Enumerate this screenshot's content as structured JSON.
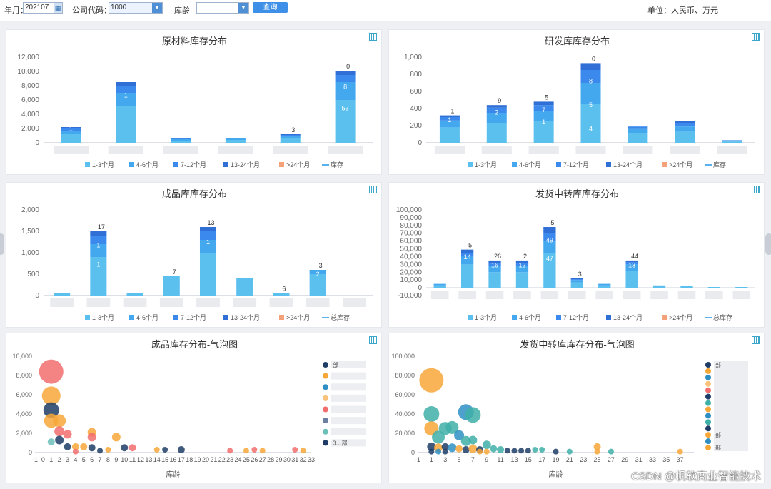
{
  "toolbar": {
    "month_label": "年月：",
    "month_value": "202107",
    "company_label": "公司代码：",
    "company_value": "1000",
    "age_label": "库龄:",
    "age_value": "",
    "query_label": "查询",
    "unit_text": "单位：人民币、万元"
  },
  "colors": {
    "b1_3": "#5bc0ee",
    "b4_6": "#44a8ef",
    "b7_12": "#3b89ec",
    "b13_24": "#2f6fd6",
    "b24": "#f5a27a",
    "line": "#5ab1ef"
  },
  "legend_bar": [
    "1-3个月",
    "4-6个月",
    "7-12个月",
    "13-24个月",
    ">24个月",
    "库存"
  ],
  "legend_bar_total": [
    "1-3个月",
    "4-6个月",
    "7-12个月",
    "13-24个月",
    ">24个月",
    "总库存"
  ],
  "chart_data": [
    {
      "type": "bar",
      "title": "原材料库存分布",
      "y_ticks": [
        "0",
        "2,000",
        "4,000",
        "6,000",
        "8,000",
        "10,000",
        "12,000"
      ],
      "ylim": [
        0,
        12000
      ],
      "categories": [
        "",
        "",
        "",
        "",
        "",
        ""
      ],
      "series": [
        {
          "name": "1-3个月",
          "values": [
            1200,
            5200,
            300,
            400,
            600,
            6000
          ]
        },
        {
          "name": "4-6个月",
          "values": [
            500,
            1800,
            200,
            200,
            300,
            2500
          ]
        },
        {
          "name": "7-12个月",
          "values": [
            300,
            900,
            100,
            0,
            200,
            1000
          ]
        },
        {
          "name": "13-24个月",
          "values": [
            200,
            600,
            0,
            0,
            100,
            600
          ]
        },
        {
          "name": ">24个月",
          "values": [
            0,
            0,
            0,
            0,
            0,
            0
          ]
        }
      ],
      "data_labels": [
        "",
        "",
        "",
        "",
        "3",
        "0"
      ],
      "segment_labels": [
        [
          "1"
        ],
        [
          "1"
        ],
        [],
        [],
        [],
        [
          "8",
          "53"
        ]
      ]
    },
    {
      "type": "bar",
      "title": "研发库库存分布",
      "y_ticks": [
        "0",
        "200",
        "400",
        "600",
        "800",
        "1,000"
      ],
      "ylim": [
        0,
        1000
      ],
      "categories": [
        "",
        "",
        "",
        "",
        "",
        "",
        ""
      ],
      "series": [
        {
          "name": "1-3个月",
          "values": [
            180,
            230,
            250,
            450,
            110,
            130,
            15
          ]
        },
        {
          "name": "4-6个月",
          "values": [
            80,
            120,
            120,
            250,
            50,
            60,
            10
          ]
        },
        {
          "name": "7-12个月",
          "values": [
            40,
            60,
            70,
            150,
            30,
            40,
            5
          ]
        },
        {
          "name": "13-24个月",
          "values": [
            20,
            30,
            40,
            80,
            0,
            20,
            0
          ]
        },
        {
          "name": ">24个月",
          "values": [
            0,
            0,
            0,
            0,
            0,
            0,
            0
          ]
        }
      ],
      "data_labels": [
        "1",
        "9",
        "5",
        "0",
        "",
        "",
        ""
      ],
      "segment_labels": [
        [
          "1"
        ],
        [
          "2"
        ],
        [
          "7",
          "1"
        ],
        [
          "8",
          "5",
          "4"
        ],
        [],
        [],
        []
      ]
    },
    {
      "type": "bar",
      "title": "成品库库存分布",
      "y_ticks": [
        "0",
        "500",
        "1,000",
        "1,500",
        "2,000"
      ],
      "ylim": [
        0,
        2000
      ],
      "categories": [
        "",
        "",
        "",
        "",
        "",
        "",
        "",
        "",
        ""
      ],
      "series": [
        {
          "name": "1-3个月",
          "values": [
            60,
            900,
            50,
            450,
            1000,
            400,
            60,
            500,
            0
          ]
        },
        {
          "name": "4-6个月",
          "values": [
            0,
            300,
            0,
            0,
            300,
            0,
            0,
            100,
            0
          ]
        },
        {
          "name": "7-12个月",
          "values": [
            0,
            200,
            0,
            0,
            200,
            0,
            0,
            0,
            0
          ]
        },
        {
          "name": "13-24个月",
          "values": [
            0,
            100,
            0,
            0,
            100,
            0,
            0,
            0,
            0
          ]
        },
        {
          "name": ">24个月",
          "values": [
            0,
            0,
            0,
            0,
            0,
            0,
            0,
            0,
            0
          ]
        }
      ],
      "data_labels": [
        "",
        "17",
        "",
        "7",
        "13",
        "",
        "6",
        "3",
        ""
      ],
      "segment_labels": [
        [],
        [
          "1",
          "1"
        ],
        [],
        [],
        [
          "1"
        ],
        [],
        [],
        [
          "2"
        ],
        []
      ]
    },
    {
      "type": "bar",
      "title": "发货中转库库存分布",
      "y_ticks": [
        "-10,000",
        "0",
        "10,000",
        "20,000",
        "30,000",
        "40,000",
        "50,000",
        "60,000",
        "70,000",
        "80,000",
        "90,000",
        "100,000"
      ],
      "ylim": [
        -10000,
        100000
      ],
      "categories": [
        "",
        "",
        "",
        "",
        "",
        "",
        "",
        "",
        "",
        "",
        "",
        ""
      ],
      "series": [
        {
          "name": "1-3个月",
          "values": [
            3000,
            30000,
            20000,
            20000,
            45000,
            7000,
            3000,
            22000,
            2000,
            2000,
            1000,
            1000
          ]
        },
        {
          "name": "4-6个月",
          "values": [
            2000,
            10000,
            8000,
            8000,
            15000,
            3000,
            2000,
            8000,
            1000,
            0,
            0,
            0
          ]
        },
        {
          "name": "7-12个月",
          "values": [
            0,
            5000,
            4000,
            4000,
            10000,
            1000,
            0,
            3000,
            0,
            0,
            0,
            0
          ]
        },
        {
          "name": "13-24个月",
          "values": [
            0,
            4000,
            3000,
            3000,
            8000,
            1000,
            0,
            2000,
            0,
            0,
            0,
            0
          ]
        },
        {
          "name": ">24个月",
          "values": [
            0,
            0,
            0,
            0,
            0,
            0,
            0,
            0,
            0,
            0,
            0,
            0
          ]
        }
      ],
      "data_labels": [
        "",
        "5",
        "26",
        "2",
        "5",
        "3",
        "",
        "44",
        "",
        "",
        "",
        ""
      ],
      "segment_labels": [
        [],
        [
          "14"
        ],
        [
          "16"
        ],
        [
          "12"
        ],
        [
          "49",
          "47"
        ],
        [],
        [],
        [
          "13"
        ],
        [],
        [],
        [],
        []
      ]
    },
    {
      "type": "scatter",
      "title": "成品库存分布-气泡图",
      "xlabel": "库龄",
      "x_ticks": [
        -1,
        0,
        1,
        2,
        3,
        4,
        5,
        6,
        7,
        8,
        9,
        10,
        11,
        12,
        13,
        14,
        15,
        16,
        17,
        18,
        19,
        20,
        21,
        22,
        23,
        24,
        25,
        26,
        27,
        28,
        29,
        30,
        31,
        32,
        33
      ],
      "xlim": [
        -1,
        33
      ],
      "y_ticks": [
        "0",
        "2,000",
        "4,000",
        "6,000",
        "8,000",
        "10,000"
      ],
      "ylim": [
        0,
        10000
      ],
      "legend": [
        "部",
        "",
        "",
        "",
        "",
        "",
        "",
        "3…部"
      ],
      "points": [
        {
          "x": 1,
          "y": 8400,
          "r": 17,
          "c": "#f26d6d"
        },
        {
          "x": 1,
          "y": 5900,
          "r": 13,
          "c": "#f7a738"
        },
        {
          "x": 1,
          "y": 4400,
          "r": 11,
          "c": "#1f3d66"
        },
        {
          "x": 1,
          "y": 3300,
          "r": 10,
          "c": "#f7a738"
        },
        {
          "x": 2,
          "y": 3300,
          "r": 9,
          "c": "#f7a738"
        },
        {
          "x": 2,
          "y": 2200,
          "r": 7,
          "c": "#f26d6d"
        },
        {
          "x": 3,
          "y": 1900,
          "r": 6,
          "c": "#f26d6d"
        },
        {
          "x": 2,
          "y": 1300,
          "r": 6,
          "c": "#1f3d66"
        },
        {
          "x": 1,
          "y": 1100,
          "r": 5,
          "c": "#6cc0b8"
        },
        {
          "x": 3,
          "y": 600,
          "r": 5,
          "c": "#1f3d66"
        },
        {
          "x": 4,
          "y": 600,
          "r": 5,
          "c": "#f7a738"
        },
        {
          "x": 5,
          "y": 600,
          "r": 5,
          "c": "#f7a738"
        },
        {
          "x": 6,
          "y": 2100,
          "r": 6,
          "c": "#f7a738"
        },
        {
          "x": 6,
          "y": 1600,
          "r": 6,
          "c": "#f26d6d"
        },
        {
          "x": 6,
          "y": 500,
          "r": 5,
          "c": "#1f3d66"
        },
        {
          "x": 9,
          "y": 1600,
          "r": 6,
          "c": "#f7a738"
        },
        {
          "x": 7,
          "y": 200,
          "r": 4,
          "c": "#1f3d66"
        },
        {
          "x": 8,
          "y": 300,
          "r": 4,
          "c": "#f7a738"
        },
        {
          "x": 10,
          "y": 500,
          "r": 5,
          "c": "#1f3d66"
        },
        {
          "x": 11,
          "y": 500,
          "r": 5,
          "c": "#f26d6d"
        },
        {
          "x": 4,
          "y": 100,
          "r": 4,
          "c": "#f26d6d"
        },
        {
          "x": 14,
          "y": 300,
          "r": 4,
          "c": "#f7a738"
        },
        {
          "x": 15,
          "y": 300,
          "r": 4,
          "c": "#1f3d66"
        },
        {
          "x": 17,
          "y": 300,
          "r": 5,
          "c": "#1f3d66"
        },
        {
          "x": 23,
          "y": 200,
          "r": 4,
          "c": "#f26d6d"
        },
        {
          "x": 25,
          "y": 200,
          "r": 4,
          "c": "#f7a738"
        },
        {
          "x": 26,
          "y": 300,
          "r": 4,
          "c": "#f26d6d"
        },
        {
          "x": 27,
          "y": 200,
          "r": 4,
          "c": "#f7a738"
        },
        {
          "x": 31,
          "y": 300,
          "r": 4,
          "c": "#f26d6d"
        },
        {
          "x": 32,
          "y": 200,
          "r": 4,
          "c": "#f7a738"
        }
      ]
    },
    {
      "type": "scatter",
      "title": "发货中转库库存分布-气泡图",
      "xlabel": "库龄",
      "x_ticks": [
        -1,
        1,
        3,
        5,
        7,
        9,
        11,
        13,
        15,
        17,
        19,
        21,
        23,
        25,
        27,
        29,
        31,
        33,
        35,
        37
      ],
      "xlim": [
        -1,
        39
      ],
      "y_ticks": [
        "0",
        "20,000",
        "40,000",
        "60,000",
        "80,000",
        "100,000"
      ],
      "ylim": [
        0,
        100000
      ],
      "legend": [
        "部",
        "",
        "",
        "",
        "",
        "",
        "",
        "",
        "",
        "",
        "",
        "部",
        "",
        "部"
      ],
      "points": [
        {
          "x": 1,
          "y": 75000,
          "r": 17,
          "c": "#f7a738"
        },
        {
          "x": 1,
          "y": 40000,
          "r": 11,
          "c": "#3fb0a8"
        },
        {
          "x": 6,
          "y": 42000,
          "r": 11,
          "c": "#2f8fc4"
        },
        {
          "x": 7,
          "y": 39000,
          "r": 11,
          "c": "#3fb0a8"
        },
        {
          "x": 1,
          "y": 25000,
          "r": 10,
          "c": "#f7a738"
        },
        {
          "x": 3,
          "y": 25000,
          "r": 9,
          "c": "#3fb0a8"
        },
        {
          "x": 4,
          "y": 26000,
          "r": 9,
          "c": "#3fb0a8"
        },
        {
          "x": 2,
          "y": 16000,
          "r": 9,
          "c": "#3fb0a8"
        },
        {
          "x": 5,
          "y": 18000,
          "r": 7,
          "c": "#2f8fc4"
        },
        {
          "x": 6,
          "y": 12000,
          "r": 7,
          "c": "#3fb0a8"
        },
        {
          "x": 7,
          "y": 13000,
          "r": 6,
          "c": "#3fb0a8"
        },
        {
          "x": 1,
          "y": 6000,
          "r": 6,
          "c": "#1f3d66"
        },
        {
          "x": 2,
          "y": 5000,
          "r": 6,
          "c": "#f7a738"
        },
        {
          "x": 3,
          "y": 6000,
          "r": 5,
          "c": "#1f3d66"
        },
        {
          "x": 4,
          "y": 5000,
          "r": 6,
          "c": "#2f8fc4"
        },
        {
          "x": 5,
          "y": 4000,
          "r": 5,
          "c": "#f7a738"
        },
        {
          "x": 6,
          "y": 3000,
          "r": 5,
          "c": "#1f3d66"
        },
        {
          "x": 7,
          "y": 4000,
          "r": 6,
          "c": "#f7a738"
        },
        {
          "x": 8,
          "y": 3000,
          "r": 5,
          "c": "#1f3d66"
        },
        {
          "x": 9,
          "y": 8000,
          "r": 6,
          "c": "#3fb0a8"
        },
        {
          "x": 10,
          "y": 4000,
          "r": 5,
          "c": "#3fb0a8"
        },
        {
          "x": 11,
          "y": 3000,
          "r": 5,
          "c": "#3fb0a8"
        },
        {
          "x": 12,
          "y": 2000,
          "r": 4,
          "c": "#1f3d66"
        },
        {
          "x": 13,
          "y": 2000,
          "r": 4,
          "c": "#1f3d66"
        },
        {
          "x": 14,
          "y": 2000,
          "r": 4,
          "c": "#1f3d66"
        },
        {
          "x": 15,
          "y": 2000,
          "r": 4,
          "c": "#1f3d66"
        },
        {
          "x": 16,
          "y": 3000,
          "r": 4,
          "c": "#3fb0a8"
        },
        {
          "x": 17,
          "y": 3000,
          "r": 4,
          "c": "#3fb0a8"
        },
        {
          "x": 19,
          "y": 1000,
          "r": 4,
          "c": "#1f3d66"
        },
        {
          "x": 21,
          "y": 1000,
          "r": 4,
          "c": "#3fb0a8"
        },
        {
          "x": 25,
          "y": 6000,
          "r": 5,
          "c": "#f7a738"
        },
        {
          "x": 25,
          "y": 1000,
          "r": 4,
          "c": "#f7a738"
        },
        {
          "x": 27,
          "y": 1000,
          "r": 4,
          "c": "#3fb0a8"
        },
        {
          "x": 37,
          "y": 1000,
          "r": 4,
          "c": "#f7a738"
        },
        {
          "x": 1,
          "y": 1000,
          "r": 4,
          "c": "#1f3d66"
        },
        {
          "x": 2,
          "y": 1000,
          "r": 4,
          "c": "#2f8fc4"
        },
        {
          "x": 3,
          "y": 1000,
          "r": 4,
          "c": "#1f3d66"
        },
        {
          "x": 8,
          "y": 1000,
          "r": 4,
          "c": "#f7a738"
        },
        {
          "x": 9,
          "y": 1000,
          "r": 4,
          "c": "#f7a738"
        }
      ]
    }
  ],
  "bubble_legend_colors": [
    [
      "#1f3d66",
      "#f7a738",
      "#2f8fc4",
      "#f7c27a",
      "#f26d6d",
      "#6b7fa3",
      "#6cc0b8",
      "#1f3d66"
    ],
    [
      "#1f3d66",
      "#f7a738",
      "#2f8fc4",
      "#f7c27a",
      "#f26d6d",
      "#1f3d66",
      "#3fb0a8",
      "#f7a738",
      "#2f8fc4",
      "#3fb0a8",
      "#1f3d66",
      "#f7a738",
      "#2f8fc4",
      "#f7a738"
    ]
  ],
  "watermark": "CSDN @帆软商业智能技术"
}
